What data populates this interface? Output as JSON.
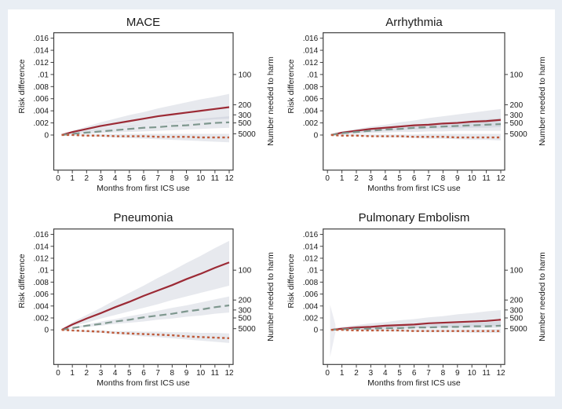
{
  "figure": {
    "background_outer": "#e9eef4",
    "background_inner": "#ffffff"
  },
  "colors": {
    "band": "#b9c0cf",
    "axis": "#3f3f3f",
    "text": "#1a1a1a",
    "solid_line": "#9c2a35",
    "dashed_line": "#7e978e",
    "dotted_line": "#bf5b3a"
  },
  "axes": {
    "xlabel": "Months from first ICS use",
    "ylabel_left": "Risk difference",
    "ylabel_right": "Number needed to harm",
    "xlim": [
      0,
      12
    ],
    "ylim": [
      -0.0058,
      0.0169
    ],
    "x_ticks": [
      "0",
      "1",
      "2",
      "3",
      "4",
      "5",
      "6",
      "7",
      "8",
      "9",
      "10",
      "11",
      "12"
    ],
    "y_ticks": [
      {
        "label": ".016",
        "value": 0.016
      },
      {
        "label": ".014",
        "value": 0.014
      },
      {
        "label": ".012",
        "value": 0.012
      },
      {
        "label": ".01",
        "value": 0.01
      },
      {
        "label": ".008",
        "value": 0.008
      },
      {
        "label": ".006",
        "value": 0.006
      },
      {
        "label": ".004",
        "value": 0.004
      },
      {
        "label": ".002",
        "value": 0.002
      },
      {
        "label": "0",
        "value": 0.0
      }
    ],
    "right_ticks": [
      {
        "label": "100",
        "value": 0.01
      },
      {
        "label": "200",
        "value": 0.005
      },
      {
        "label": "300",
        "value": 0.003333
      },
      {
        "label": "500",
        "value": 0.002
      },
      {
        "label": "5000",
        "value": 0.0002
      }
    ]
  },
  "chart_data": [
    {
      "type": "line",
      "title": "MACE",
      "x": [
        0.25,
        1,
        2,
        3,
        4,
        5,
        6,
        7,
        8,
        9,
        10,
        11,
        12
      ],
      "series": [
        {
          "name": "solid-dark-red",
          "style": "solid",
          "color": "#9c2a35",
          "values": [
            0.0,
            0.0005,
            0.001,
            0.0015,
            0.0019,
            0.0023,
            0.0027,
            0.0031,
            0.0034,
            0.0037,
            0.004,
            0.0043,
            0.0046
          ],
          "band_lower": [
            0.0,
            0.0003,
            0.0006,
            0.0009,
            0.0012,
            0.0014,
            0.0017,
            0.0019,
            0.0021,
            0.0023,
            0.0024,
            0.0026,
            0.0027
          ],
          "band_upper": [
            0.0001,
            0.0007,
            0.0014,
            0.0021,
            0.0027,
            0.0033,
            0.0038,
            0.0044,
            0.0049,
            0.0054,
            0.0059,
            0.0063,
            0.0068
          ]
        },
        {
          "name": "dashed-gray-green",
          "style": "long-dash",
          "color": "#7e978e",
          "values": [
            0.0,
            0.0002,
            0.0004,
            0.0006,
            0.0008,
            0.001,
            0.0012,
            0.0013,
            0.0015,
            0.0016,
            0.0018,
            0.002,
            0.0021
          ],
          "band_lower": [
            0.0,
            0.0001,
            0.0002,
            0.0003,
            0.0004,
            0.0005,
            0.0006,
            0.0007,
            0.0008,
            0.0009,
            0.001,
            0.0011,
            0.0012
          ],
          "band_upper": [
            0.0001,
            0.0004,
            0.0007,
            0.001,
            0.0012,
            0.0015,
            0.0017,
            0.0019,
            0.0022,
            0.0024,
            0.0027,
            0.0029,
            0.0031
          ]
        },
        {
          "name": "dotted-orange",
          "style": "short-dash",
          "color": "#bf5b3a",
          "values": [
            0.0,
            -0.0,
            -0.0001,
            -0.0001,
            -0.0002,
            -0.0002,
            -0.0002,
            -0.0003,
            -0.0003,
            -0.0003,
            -0.0004,
            -0.0004,
            -0.0004
          ],
          "band_lower": [
            0.0,
            -0.0001,
            -0.0002,
            -0.0003,
            -0.0004,
            -0.0005,
            -0.0006,
            -0.0007,
            -0.0008,
            -0.0009,
            -0.001,
            -0.0011,
            -0.0012
          ],
          "band_upper": [
            0.0001,
            0.0001,
            0.0001,
            0.0001,
            0.0002,
            0.0002,
            0.0002,
            0.0002,
            0.0002,
            0.0002,
            0.0002,
            0.0002,
            0.0002
          ]
        }
      ]
    },
    {
      "type": "line",
      "title": "Arrhythmia",
      "x": [
        0.25,
        1,
        2,
        3,
        4,
        5,
        6,
        7,
        8,
        9,
        10,
        11,
        12
      ],
      "series": [
        {
          "name": "solid-dark-red",
          "style": "solid",
          "color": "#9c2a35",
          "values": [
            0.0,
            0.0004,
            0.0007,
            0.001,
            0.0012,
            0.0014,
            0.0016,
            0.0017,
            0.0019,
            0.002,
            0.0022,
            0.0023,
            0.0025
          ],
          "band_lower": [
            0.0,
            0.0002,
            0.0004,
            0.0005,
            0.0007,
            0.0008,
            0.0009,
            0.001,
            0.0011,
            0.0011,
            0.0012,
            0.0012,
            0.0013
          ],
          "band_upper": [
            0.0001,
            0.0006,
            0.001,
            0.0014,
            0.0017,
            0.0021,
            0.0024,
            0.0028,
            0.0031,
            0.0034,
            0.0037,
            0.004,
            0.0043
          ]
        },
        {
          "name": "dashed-gray-green",
          "style": "long-dash",
          "color": "#7e978e",
          "values": [
            0.0,
            0.0003,
            0.0005,
            0.0007,
            0.0009,
            0.001,
            0.0012,
            0.0013,
            0.0014,
            0.0015,
            0.0016,
            0.0017,
            0.0018
          ],
          "band_lower": [
            0.0,
            0.0001,
            0.0002,
            0.0003,
            0.0004,
            0.0005,
            0.0005,
            0.0006,
            0.0006,
            0.0007,
            0.0007,
            0.0007,
            0.0007
          ],
          "band_upper": [
            0.0001,
            0.0004,
            0.0007,
            0.001,
            0.0012,
            0.0014,
            0.0016,
            0.0018,
            0.002,
            0.0022,
            0.0024,
            0.0026,
            0.0028
          ]
        },
        {
          "name": "dotted-orange",
          "style": "short-dash",
          "color": "#bf5b3a",
          "values": [
            0.0,
            -0.0001,
            -0.0001,
            -0.0002,
            -0.0002,
            -0.0002,
            -0.0003,
            -0.0003,
            -0.0003,
            -0.0004,
            -0.0004,
            -0.0004,
            -0.0004
          ],
          "band_lower": [
            0.0,
            -0.0001,
            -0.0002,
            -0.0003,
            -0.0004,
            -0.0004,
            -0.0005,
            -0.0006,
            -0.0006,
            -0.0007,
            -0.0008,
            -0.0008,
            -0.0009
          ],
          "band_upper": [
            0.0001,
            0.0001,
            0.0001,
            0.0001,
            0.0001,
            0.0001,
            0.0001,
            0.0002,
            0.0002,
            0.0002,
            0.0002,
            0.0002,
            0.0002
          ]
        }
      ]
    },
    {
      "type": "line",
      "title": "Pneumonia",
      "x": [
        0.25,
        1,
        2,
        3,
        4,
        5,
        6,
        7,
        8,
        9,
        10,
        11,
        12
      ],
      "series": [
        {
          "name": "solid-dark-red",
          "style": "solid",
          "color": "#9c2a35",
          "values": [
            0.0,
            0.0009,
            0.0019,
            0.0028,
            0.0038,
            0.0047,
            0.0057,
            0.0066,
            0.0075,
            0.0085,
            0.0094,
            0.0104,
            0.0113
          ],
          "band_lower": [
            0.0,
            0.0006,
            0.0012,
            0.0019,
            0.0025,
            0.0031,
            0.0037,
            0.0043,
            0.005,
            0.0056,
            0.0062,
            0.0068,
            0.0074
          ],
          "band_upper": [
            0.0001,
            0.0013,
            0.0025,
            0.0037,
            0.005,
            0.0062,
            0.0074,
            0.0087,
            0.0099,
            0.0112,
            0.0124,
            0.0137,
            0.0149
          ]
        },
        {
          "name": "dashed-gray-green",
          "style": "long-dash",
          "color": "#7e978e",
          "values": [
            0.0,
            0.0003,
            0.0007,
            0.001,
            0.0014,
            0.0017,
            0.0021,
            0.0024,
            0.0027,
            0.0031,
            0.0034,
            0.0038,
            0.0041
          ],
          "band_lower": [
            0.0,
            0.0002,
            0.0005,
            0.0007,
            0.001,
            0.0012,
            0.0014,
            0.0017,
            0.0019,
            0.0022,
            0.0024,
            0.0027,
            0.0029
          ],
          "band_upper": [
            0.0001,
            0.0005,
            0.0009,
            0.0014,
            0.0018,
            0.0023,
            0.0027,
            0.0032,
            0.0037,
            0.0041,
            0.0046,
            0.0051,
            0.0056
          ]
        },
        {
          "name": "dotted-orange",
          "style": "short-dash",
          "color": "#bf5b3a",
          "values": [
            0.0,
            -0.0001,
            -0.0002,
            -0.0003,
            -0.0005,
            -0.0006,
            -0.0007,
            -0.0008,
            -0.0009,
            -0.0011,
            -0.0012,
            -0.0013,
            -0.0014
          ],
          "band_lower": [
            0.0,
            -0.0002,
            -0.0004,
            -0.0005,
            -0.0007,
            -0.0009,
            -0.0011,
            -0.0012,
            -0.0014,
            -0.0016,
            -0.0018,
            -0.002,
            -0.0022
          ],
          "band_upper": [
            0.0001,
            0.0,
            -0.0001,
            -0.0001,
            -0.0002,
            -0.0002,
            -0.0003,
            -0.0003,
            -0.0004,
            -0.0004,
            -0.0005,
            -0.0005,
            -0.0006
          ]
        }
      ]
    },
    {
      "type": "line",
      "title": "Pulmonary Embolism",
      "x": [
        0.25,
        1,
        2,
        3,
        4,
        5,
        6,
        7,
        8,
        9,
        10,
        11,
        12
      ],
      "initial_band": {
        "x": [
          0.18,
          0.55
        ],
        "upper": [
          0.0042,
          0.0009
        ],
        "lower": [
          -0.0046,
          -0.0004
        ]
      },
      "series": [
        {
          "name": "solid-dark-red",
          "style": "solid",
          "color": "#9c2a35",
          "values": [
            0.0,
            0.0002,
            0.0004,
            0.0005,
            0.0007,
            0.0008,
            0.0009,
            0.0011,
            0.0012,
            0.0013,
            0.0014,
            0.0015,
            0.0017
          ],
          "band_lower": [
            0.0,
            0.0001,
            0.0001,
            0.0002,
            0.0002,
            0.0003,
            0.0003,
            0.0004,
            0.0004,
            0.0005,
            0.0005,
            0.0006,
            0.0006
          ],
          "band_upper": [
            0.0002,
            0.0005,
            0.0008,
            0.0011,
            0.0013,
            0.0016,
            0.0018,
            0.0021,
            0.0023,
            0.0026,
            0.0028,
            0.0031,
            0.0033
          ]
        },
        {
          "name": "dashed-gray-green",
          "style": "long-dash",
          "color": "#7e978e",
          "values": [
            0.0,
            0.0001,
            0.0002,
            0.0002,
            0.0003,
            0.0003,
            0.0004,
            0.0004,
            0.0005,
            0.0005,
            0.0006,
            0.0006,
            0.0007
          ],
          "band_lower": [
            0.0,
            0.0,
            0.0001,
            0.0001,
            0.0001,
            0.0001,
            0.0002,
            0.0002,
            0.0002,
            0.0002,
            0.0002,
            0.0003,
            0.0003
          ],
          "band_upper": [
            0.0001,
            0.0002,
            0.0004,
            0.0005,
            0.0006,
            0.0007,
            0.0008,
            0.0009,
            0.001,
            0.0011,
            0.0012,
            0.0013,
            0.0014
          ]
        },
        {
          "name": "dotted-orange",
          "style": "short-dash",
          "color": "#bf5b3a",
          "values": [
            0.0,
            -0.0,
            -0.0001,
            -0.0001,
            -0.0001,
            -0.0001,
            -0.0002,
            -0.0002,
            -0.0002,
            -0.0002,
            -0.0002,
            -0.0002,
            -0.0002
          ],
          "band_lower": [
            0.0,
            -0.0001,
            -0.0001,
            -0.0002,
            -0.0002,
            -0.0003,
            -0.0003,
            -0.0004,
            -0.0004,
            -0.0004,
            -0.0005,
            -0.0005,
            -0.0005
          ],
          "band_upper": [
            0.0001,
            0.0001,
            0.0001,
            0.0001,
            0.0001,
            0.0001,
            0.0001,
            0.0001,
            0.0001,
            0.0001,
            0.0001,
            0.0001,
            0.0002
          ]
        }
      ]
    }
  ]
}
